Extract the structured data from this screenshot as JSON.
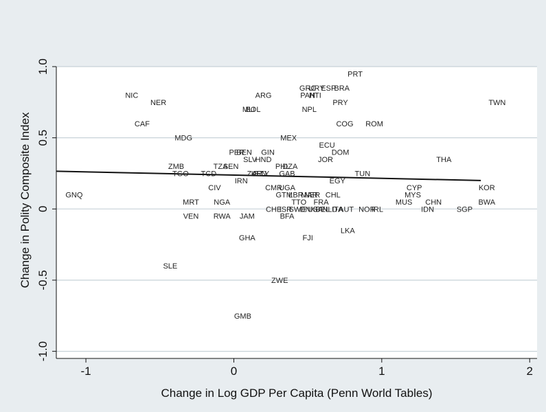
{
  "chart_data": {
    "type": "scatter",
    "xlabel": "Change in Log GDP Per Capita (Penn World Tables)",
    "ylabel": "Change in Polity Composite Index",
    "xlim": [
      -1.2,
      2.05
    ],
    "ylim": [
      -1.05,
      1.0
    ],
    "x_ticks": [
      {
        "value": -1,
        "label": "-1"
      },
      {
        "value": 0,
        "label": "0"
      },
      {
        "value": 1,
        "label": "1"
      },
      {
        "value": 2,
        "label": "2"
      }
    ],
    "y_ticks": [
      {
        "value": 1.0,
        "label": "1.0"
      },
      {
        "value": 0.5,
        "label": "0.5"
      },
      {
        "value": 0,
        "label": "0"
      },
      {
        "value": -0.5,
        "label": "-0.5"
      },
      {
        "value": -1.0,
        "label": "-1.0"
      }
    ],
    "grid": true,
    "fit_line": {
      "x": [
        -1.2,
        1.67
      ],
      "y": [
        0.265,
        0.2
      ]
    },
    "points": [
      {
        "label": "PRT",
        "x": 0.82,
        "y": 0.95
      },
      {
        "label": "NIC",
        "x": -0.69,
        "y": 0.8
      },
      {
        "label": "NER",
        "x": -0.51,
        "y": 0.75
      },
      {
        "label": "ARG",
        "x": 0.2,
        "y": 0.8
      },
      {
        "label": "GRC",
        "x": 0.5,
        "y": 0.85
      },
      {
        "label": "URY",
        "x": 0.56,
        "y": 0.85
      },
      {
        "label": "ESP",
        "x": 0.64,
        "y": 0.85
      },
      {
        "label": "BRA",
        "x": 0.73,
        "y": 0.85
      },
      {
        "label": "PAN",
        "x": 0.5,
        "y": 0.8
      },
      {
        "label": "HTI",
        "x": 0.55,
        "y": 0.8
      },
      {
        "label": "TWN",
        "x": 1.78,
        "y": 0.75
      },
      {
        "label": "PRY",
        "x": 0.72,
        "y": 0.75
      },
      {
        "label": "MLI",
        "x": 0.1,
        "y": 0.7
      },
      {
        "label": "BOL",
        "x": 0.13,
        "y": 0.7
      },
      {
        "label": "NPL",
        "x": 0.51,
        "y": 0.7
      },
      {
        "label": "CAF",
        "x": -0.62,
        "y": 0.6
      },
      {
        "label": "COG",
        "x": 0.75,
        "y": 0.6
      },
      {
        "label": "ROM",
        "x": 0.95,
        "y": 0.6
      },
      {
        "label": "MDG",
        "x": -0.34,
        "y": 0.5
      },
      {
        "label": "MEX",
        "x": 0.37,
        "y": 0.5
      },
      {
        "label": "ECU",
        "x": 0.63,
        "y": 0.45
      },
      {
        "label": "PER",
        "x": 0.02,
        "y": 0.4
      },
      {
        "label": "BEN",
        "x": 0.07,
        "y": 0.4
      },
      {
        "label": "GIN",
        "x": 0.23,
        "y": 0.4
      },
      {
        "label": "DOM",
        "x": 0.72,
        "y": 0.4
      },
      {
        "label": "SLV",
        "x": 0.11,
        "y": 0.35
      },
      {
        "label": "HND",
        "x": 0.2,
        "y": 0.35
      },
      {
        "label": "JOR",
        "x": 0.62,
        "y": 0.35
      },
      {
        "label": "THA",
        "x": 1.42,
        "y": 0.35
      },
      {
        "label": "ZMB",
        "x": -0.39,
        "y": 0.3
      },
      {
        "label": "TZA",
        "x": -0.09,
        "y": 0.3
      },
      {
        "label": "SEN",
        "x": -0.02,
        "y": 0.3
      },
      {
        "label": "PHL",
        "x": 0.33,
        "y": 0.3
      },
      {
        "label": "DZA",
        "x": 0.38,
        "y": 0.3
      },
      {
        "label": "TGO",
        "x": -0.36,
        "y": 0.25
      },
      {
        "label": "TCD",
        "x": -0.17,
        "y": 0.25
      },
      {
        "label": "ZAR",
        "x": 0.14,
        "y": 0.25
      },
      {
        "label": "KEN",
        "x": 0.17,
        "y": 0.25
      },
      {
        "label": "ETY",
        "x": 0.19,
        "y": 0.25
      },
      {
        "label": "GAB",
        "x": 0.36,
        "y": 0.25
      },
      {
        "label": "TUN",
        "x": 0.87,
        "y": 0.25
      },
      {
        "label": "IRN",
        "x": 0.05,
        "y": 0.2
      },
      {
        "label": "EGY",
        "x": 0.7,
        "y": 0.2
      },
      {
        "label": "CIV",
        "x": -0.13,
        "y": 0.15
      },
      {
        "label": "CMR",
        "x": 0.27,
        "y": 0.15
      },
      {
        "label": "UGA",
        "x": 0.36,
        "y": 0.15
      },
      {
        "label": "CYP",
        "x": 1.22,
        "y": 0.15
      },
      {
        "label": "KOR",
        "x": 1.71,
        "y": 0.15
      },
      {
        "label": "GNQ",
        "x": -1.08,
        "y": 0.1
      },
      {
        "label": "GTM",
        "x": 0.34,
        "y": 0.1
      },
      {
        "label": "LBR",
        "x": 0.42,
        "y": 0.1
      },
      {
        "label": "MAR",
        "x": 0.51,
        "y": 0.1
      },
      {
        "label": "NER",
        "x": 0.53,
        "y": 0.1
      },
      {
        "label": "CHL",
        "x": 0.67,
        "y": 0.1
      },
      {
        "label": "MYS",
        "x": 1.21,
        "y": 0.1
      },
      {
        "label": "MRT",
        "x": -0.29,
        "y": 0.05
      },
      {
        "label": "NGA",
        "x": -0.08,
        "y": 0.05
      },
      {
        "label": "TTO",
        "x": 0.44,
        "y": 0.05
      },
      {
        "label": "FRA",
        "x": 0.59,
        "y": 0.05
      },
      {
        "label": "MUS",
        "x": 1.15,
        "y": 0.05
      },
      {
        "label": "CHN",
        "x": 1.35,
        "y": 0.05
      },
      {
        "label": "BWA",
        "x": 1.71,
        "y": 0.05
      },
      {
        "label": "CHE",
        "x": 0.27,
        "y": 0.0
      },
      {
        "label": "ISR",
        "x": 0.35,
        "y": 0.0
      },
      {
        "label": "SWE",
        "x": 0.43,
        "y": 0.0
      },
      {
        "label": "DNK",
        "x": 0.5,
        "y": 0.0
      },
      {
        "label": "USA",
        "x": 0.55,
        "y": 0.0
      },
      {
        "label": "BEL",
        "x": 0.6,
        "y": 0.0
      },
      {
        "label": "NLD",
        "x": 0.65,
        "y": 0.0
      },
      {
        "label": "ITA",
        "x": 0.7,
        "y": 0.0
      },
      {
        "label": "AUT",
        "x": 0.76,
        "y": 0.0
      },
      {
        "label": "NOR",
        "x": 0.9,
        "y": 0.0
      },
      {
        "label": "IRL",
        "x": 0.97,
        "y": 0.0
      },
      {
        "label": "IDN",
        "x": 1.31,
        "y": 0.0
      },
      {
        "label": "SGP",
        "x": 1.56,
        "y": 0.0
      },
      {
        "label": "BFA",
        "x": 0.36,
        "y": -0.05
      },
      {
        "label": "VEN",
        "x": -0.29,
        "y": -0.05
      },
      {
        "label": "RWA",
        "x": -0.08,
        "y": -0.05
      },
      {
        "label": "JAM",
        "x": 0.09,
        "y": -0.05
      },
      {
        "label": "LKA",
        "x": 0.77,
        "y": -0.15
      },
      {
        "label": "GHA",
        "x": 0.09,
        "y": -0.2
      },
      {
        "label": "FJI",
        "x": 0.5,
        "y": -0.2
      },
      {
        "label": "SLE",
        "x": -0.43,
        "y": -0.4
      },
      {
        "label": "ZWE",
        "x": 0.31,
        "y": -0.5
      },
      {
        "label": "GMB",
        "x": 0.06,
        "y": -0.75
      }
    ],
    "colors": {
      "background": "#e8edf0",
      "plot_area": "#ffffff",
      "grid": "#c8d2d8",
      "fit_line": "#111111"
    }
  }
}
